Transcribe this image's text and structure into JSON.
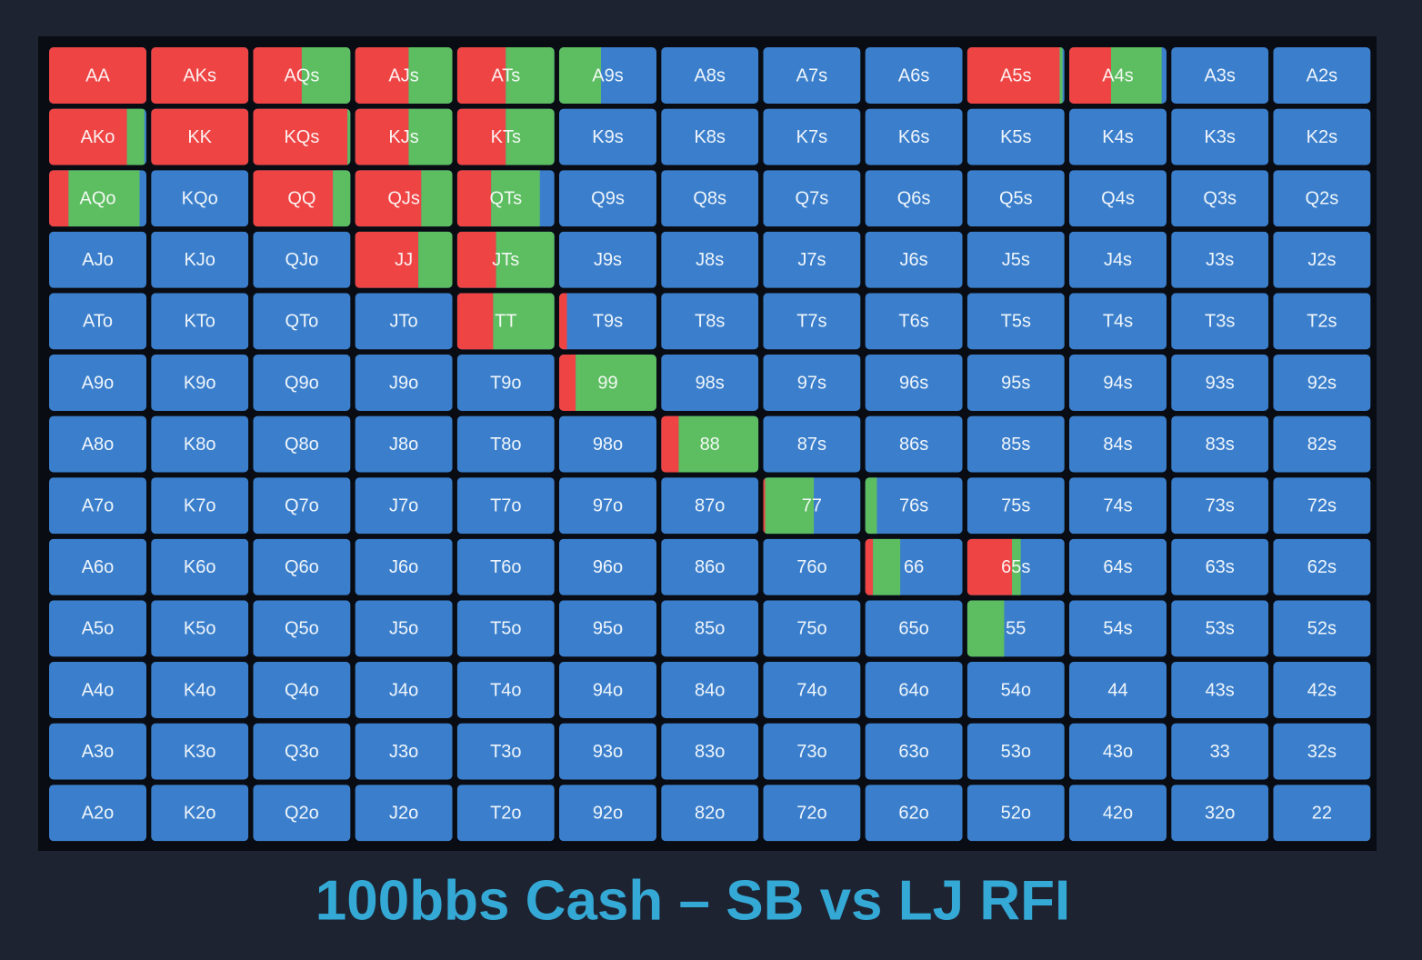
{
  "chart_data": {
    "type": "range-grid",
    "title": "100bbs Cash – SB vs LJ RFI",
    "colors": {
      "raise": "#ee4444",
      "call": "#5cbd61",
      "fold": "#3b7fcc"
    },
    "hands": [
      [
        "AA",
        "AKs",
        "AQs",
        "AJs",
        "ATs",
        "A9s",
        "A8s",
        "A7s",
        "A6s",
        "A5s",
        "A4s",
        "A3s",
        "A2s"
      ],
      [
        "AKo",
        "KK",
        "KQs",
        "KJs",
        "KTs",
        "K9s",
        "K8s",
        "K7s",
        "K6s",
        "K5s",
        "K4s",
        "K3s",
        "K2s"
      ],
      [
        "AQo",
        "KQo",
        "QQ",
        "QJs",
        "QTs",
        "Q9s",
        "Q8s",
        "Q7s",
        "Q6s",
        "Q5s",
        "Q4s",
        "Q3s",
        "Q2s"
      ],
      [
        "AJo",
        "KJo",
        "QJo",
        "JJ",
        "JTs",
        "J9s",
        "J8s",
        "J7s",
        "J6s",
        "J5s",
        "J4s",
        "J3s",
        "J2s"
      ],
      [
        "ATo",
        "KTo",
        "QTo",
        "JTo",
        "TT",
        "T9s",
        "T8s",
        "T7s",
        "T6s",
        "T5s",
        "T4s",
        "T3s",
        "T2s"
      ],
      [
        "A9o",
        "K9o",
        "Q9o",
        "J9o",
        "T9o",
        "99",
        "98s",
        "97s",
        "96s",
        "95s",
        "94s",
        "93s",
        "92s"
      ],
      [
        "A8o",
        "K8o",
        "Q8o",
        "J8o",
        "T8o",
        "98o",
        "88",
        "87s",
        "86s",
        "85s",
        "84s",
        "83s",
        "82s"
      ],
      [
        "A7o",
        "K7o",
        "Q7o",
        "J7o",
        "T7o",
        "97o",
        "87o",
        "77",
        "76s",
        "75s",
        "74s",
        "73s",
        "72s"
      ],
      [
        "A6o",
        "K6o",
        "Q6o",
        "J6o",
        "T6o",
        "96o",
        "86o",
        "76o",
        "66",
        "65s",
        "64s",
        "63s",
        "62s"
      ],
      [
        "A5o",
        "K5o",
        "Q5o",
        "J5o",
        "T5o",
        "95o",
        "85o",
        "75o",
        "65o",
        "55",
        "54s",
        "53s",
        "52s"
      ],
      [
        "A4o",
        "K4o",
        "Q4o",
        "J4o",
        "T4o",
        "94o",
        "84o",
        "74o",
        "64o",
        "54o",
        "44",
        "43s",
        "42s"
      ],
      [
        "A3o",
        "K3o",
        "Q3o",
        "J3o",
        "T3o",
        "93o",
        "83o",
        "73o",
        "63o",
        "53o",
        "43o",
        "33",
        "32s"
      ],
      [
        "A2o",
        "K2o",
        "Q2o",
        "J2o",
        "T2o",
        "92o",
        "82o",
        "72o",
        "62o",
        "52o",
        "42o",
        "32o",
        "22"
      ]
    ],
    "raise": [
      [
        100,
        100,
        50,
        55,
        50,
        0,
        0,
        0,
        0,
        95,
        43,
        0,
        0
      ],
      [
        80,
        100,
        97,
        55,
        50,
        0,
        0,
        0,
        0,
        0,
        0,
        0,
        0
      ],
      [
        20,
        0,
        82,
        68,
        35,
        0,
        0,
        0,
        0,
        0,
        0,
        0,
        0
      ],
      [
        0,
        0,
        0,
        65,
        40,
        0,
        0,
        0,
        0,
        0,
        0,
        0,
        0
      ],
      [
        0,
        0,
        0,
        0,
        37,
        8,
        0,
        0,
        0,
        0,
        0,
        0,
        0
      ],
      [
        0,
        0,
        0,
        0,
        0,
        17,
        0,
        0,
        0,
        0,
        0,
        0,
        0
      ],
      [
        0,
        0,
        0,
        0,
        0,
        0,
        18,
        0,
        0,
        0,
        0,
        0,
        0
      ],
      [
        0,
        0,
        0,
        0,
        0,
        0,
        0,
        2,
        0,
        0,
        0,
        0,
        0
      ],
      [
        0,
        0,
        0,
        0,
        0,
        0,
        0,
        0,
        8,
        46,
        0,
        0,
        0
      ],
      [
        0,
        0,
        0,
        0,
        0,
        0,
        0,
        0,
        0,
        0,
        0,
        0,
        0
      ],
      [
        0,
        0,
        0,
        0,
        0,
        0,
        0,
        0,
        0,
        0,
        0,
        0,
        0
      ],
      [
        0,
        0,
        0,
        0,
        0,
        0,
        0,
        0,
        0,
        0,
        0,
        0,
        0
      ],
      [
        0,
        0,
        0,
        0,
        0,
        0,
        0,
        0,
        0,
        0,
        0,
        0,
        0
      ]
    ],
    "call": [
      [
        0,
        0,
        50,
        45,
        50,
        43,
        0,
        0,
        0,
        3,
        52,
        0,
        0
      ],
      [
        18,
        0,
        3,
        45,
        50,
        0,
        0,
        0,
        0,
        0,
        0,
        0,
        0
      ],
      [
        73,
        0,
        18,
        32,
        50,
        0,
        0,
        0,
        0,
        0,
        0,
        0,
        0
      ],
      [
        0,
        0,
        0,
        35,
        60,
        0,
        0,
        0,
        0,
        0,
        0,
        0,
        0
      ],
      [
        0,
        0,
        0,
        0,
        63,
        0,
        0,
        0,
        0,
        0,
        0,
        0,
        0
      ],
      [
        0,
        0,
        0,
        0,
        0,
        83,
        0,
        0,
        0,
        0,
        0,
        0,
        0
      ],
      [
        0,
        0,
        0,
        0,
        0,
        0,
        82,
        0,
        0,
        0,
        0,
        0,
        0
      ],
      [
        0,
        0,
        0,
        0,
        0,
        0,
        0,
        50,
        12,
        0,
        0,
        0,
        0
      ],
      [
        0,
        0,
        0,
        0,
        0,
        0,
        0,
        0,
        28,
        9,
        0,
        0,
        0
      ],
      [
        0,
        0,
        0,
        0,
        0,
        0,
        0,
        0,
        0,
        38,
        0,
        0,
        0
      ],
      [
        0,
        0,
        0,
        0,
        0,
        0,
        0,
        0,
        0,
        0,
        0,
        0,
        0
      ],
      [
        0,
        0,
        0,
        0,
        0,
        0,
        0,
        0,
        0,
        0,
        0,
        0,
        0
      ],
      [
        0,
        0,
        0,
        0,
        0,
        0,
        0,
        0,
        0,
        0,
        0,
        0,
        0
      ]
    ]
  }
}
